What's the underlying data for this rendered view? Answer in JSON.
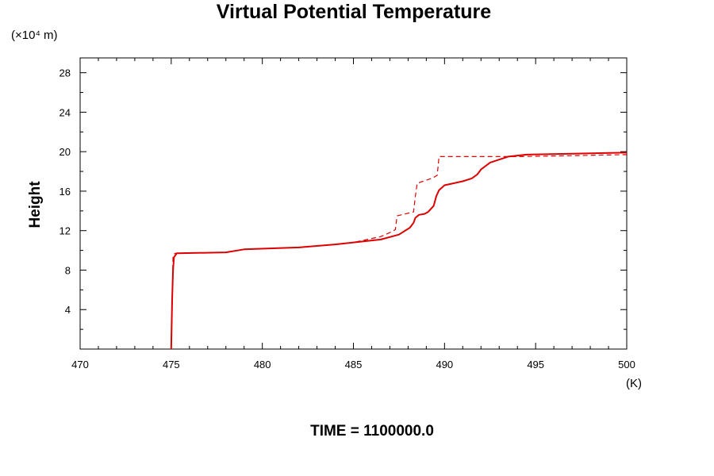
{
  "chart_data": {
    "type": "line",
    "title": "Virtual Potential Temperature",
    "ylabel": "Height",
    "yunit": "(×10⁴ m)",
    "xunit": "(K)",
    "footer": "TIME = 1100000.0",
    "xlim": [
      470,
      500
    ],
    "ylim": [
      0,
      29.5
    ],
    "xticks": [
      470,
      475,
      480,
      485,
      490,
      495,
      500
    ],
    "xtick_labels": [
      "470",
      "475",
      "480",
      "485",
      "490",
      "495",
      "500"
    ],
    "yticks": [
      4,
      8,
      12,
      16,
      20,
      24,
      28
    ],
    "ytick_labels": [
      "4",
      "8",
      "12",
      "16",
      "20",
      "24",
      "28"
    ],
    "grid": false,
    "color": "#dd0000",
    "series": [
      {
        "style": "solid",
        "x": [
          475.0,
          475.05,
          475.1,
          475.15,
          475.3,
          478.0,
          479.0,
          482.0,
          484.0,
          485.0,
          486.5,
          487.5,
          488.1,
          488.3,
          488.4,
          488.6,
          488.9,
          489.1,
          489.4,
          489.55,
          489.7,
          490.0,
          491.0,
          491.5,
          491.8,
          492.0,
          492.5,
          493.5,
          494.5,
          497.0,
          500.0
        ],
        "y": [
          0.0,
          5.0,
          8.0,
          9.3,
          9.7,
          9.8,
          10.1,
          10.3,
          10.6,
          10.8,
          11.1,
          11.6,
          12.3,
          12.8,
          13.3,
          13.6,
          13.7,
          13.9,
          14.5,
          15.5,
          16.1,
          16.6,
          17.0,
          17.3,
          17.7,
          18.2,
          18.9,
          19.5,
          19.7,
          19.8,
          19.9
        ]
      },
      {
        "style": "dashed",
        "x": [
          475.0,
          475.1,
          475.2,
          478.0,
          479.0,
          482.0,
          484.0,
          485.0,
          486.5,
          487.0,
          487.3,
          487.4,
          488.3,
          488.4,
          488.5,
          489.3,
          489.6,
          489.7,
          494.0,
          497.0,
          500.0
        ],
        "y": [
          0.0,
          9.3,
          9.7,
          9.8,
          10.1,
          10.3,
          10.6,
          10.8,
          11.4,
          11.8,
          12.1,
          13.5,
          13.9,
          15.5,
          16.8,
          17.3,
          17.6,
          19.5,
          19.5,
          19.6,
          19.7
        ]
      }
    ]
  }
}
